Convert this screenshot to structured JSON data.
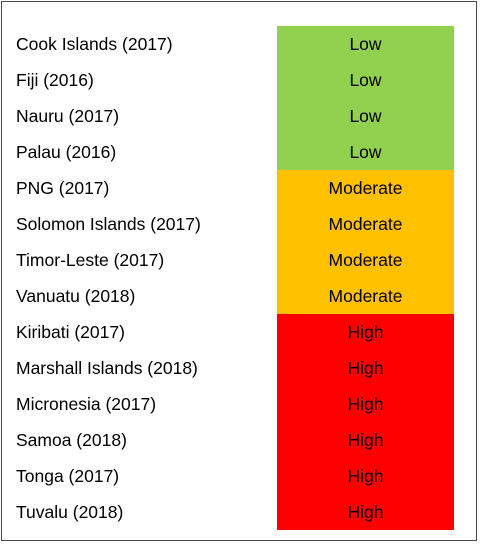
{
  "colors": {
    "Low": "#92d050",
    "Moderate": "#ffc000",
    "High": "#ff0000"
  },
  "rows": [
    {
      "country": "Cook Islands (2017)",
      "rating": "Low"
    },
    {
      "country": "Fiji (2016)",
      "rating": "Low"
    },
    {
      "country": "Nauru (2017)",
      "rating": "Low"
    },
    {
      "country": "Palau (2016)",
      "rating": "Low"
    },
    {
      "country": "PNG (2017)",
      "rating": "Moderate"
    },
    {
      "country": "Solomon Islands (2017)",
      "rating": "Moderate"
    },
    {
      "country": "Timor-Leste (2017)",
      "rating": "Moderate"
    },
    {
      "country": "Vanuatu (2018)",
      "rating": "Moderate"
    },
    {
      "country": "Kiribati (2017)",
      "rating": "High"
    },
    {
      "country": "Marshall Islands (2018)",
      "rating": "High"
    },
    {
      "country": "Micronesia (2017)",
      "rating": "High"
    },
    {
      "country": "Samoa (2018)",
      "rating": "High"
    },
    {
      "country": "Tonga (2017)",
      "rating": "High"
    },
    {
      "country": "Tuvalu (2018)",
      "rating": "High"
    }
  ]
}
